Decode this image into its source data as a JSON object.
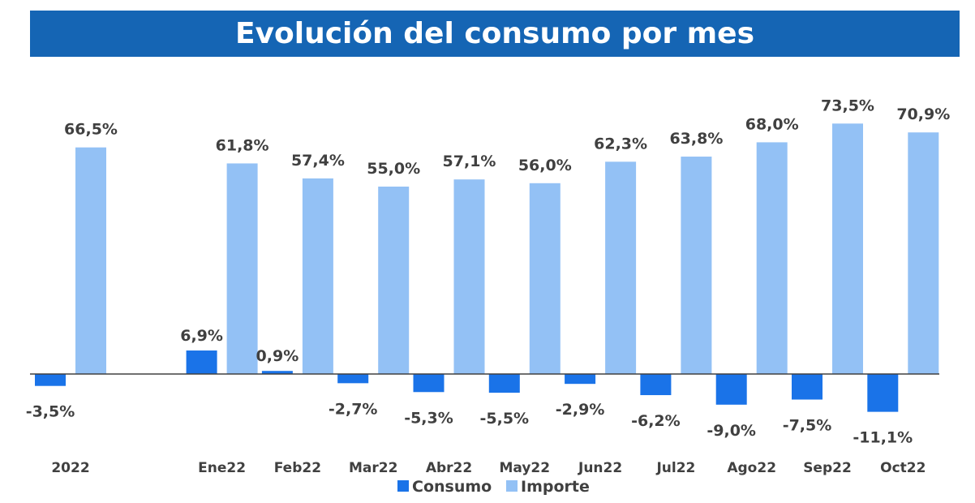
{
  "chart_data": {
    "type": "bar",
    "title": "Evolución del consumo por mes",
    "categories": [
      "2022",
      "Ene22",
      "Feb22",
      "Mar22",
      "Abr22",
      "May22",
      "Jun22",
      "Jul22",
      "Ago22",
      "Sep22",
      "Oct22"
    ],
    "series": [
      {
        "name": "Consumo",
        "color": "#1a73e8",
        "values": [
          -3.5,
          6.9,
          0.9,
          -2.7,
          -5.3,
          -5.5,
          -2.9,
          -6.2,
          -9.0,
          -7.5,
          -11.1
        ],
        "labels": [
          "-3,5%",
          "6,9%",
          "0,9%",
          "-2,7%",
          "-5,3%",
          "-5,5%",
          "-2,9%",
          "-6,2%",
          "-9,0%",
          "-7,5%",
          "-11,1%"
        ]
      },
      {
        "name": "Importe",
        "color": "#93c1f5",
        "values": [
          66.5,
          61.8,
          57.4,
          55.0,
          57.1,
          56.0,
          62.3,
          63.8,
          68.0,
          73.5,
          70.9
        ],
        "labels": [
          "66,5%",
          "61,8%",
          "57,4%",
          "55,0%",
          "57,1%",
          "56,0%",
          "62,3%",
          "63,8%",
          "68,0%",
          "73,5%",
          "70,9%"
        ]
      }
    ],
    "ylim": [
      -15,
      80
    ],
    "grid": false,
    "legend": "bottom-center",
    "category_gap_after_first": true
  }
}
